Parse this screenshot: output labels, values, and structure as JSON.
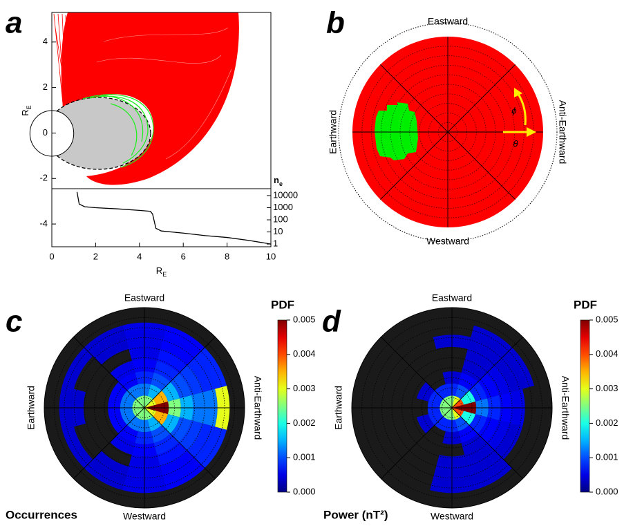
{
  "chart_data": [
    {
      "type": "line",
      "panel_label": "a",
      "xlabel": "R",
      "xlabel_sub": "E",
      "ylabel": "R",
      "ylabel_sub": "E",
      "y2label": "n",
      "y2label_sub": "e",
      "xlim": [
        0,
        10
      ],
      "xticks": [
        0,
        2,
        4,
        6,
        8,
        10
      ],
      "ylim": [
        -5,
        5.3
      ],
      "yticks": [
        -4,
        -2,
        0,
        2,
        4
      ],
      "y2scale": "log",
      "y2lim": [
        0.6,
        37000
      ],
      "y2ticks": [
        1,
        10,
        100,
        1000,
        10000
      ],
      "x": [
        1.15,
        1.25,
        1.5,
        2,
        3,
        4,
        4.5,
        4.6,
        4.75,
        5,
        6,
        7,
        8,
        9,
        10
      ],
      "series": [
        {
          "axis": "y2",
          "color": "#000000",
          "values": [
            20000,
            2000,
            1200,
            1000,
            800,
            600,
            500,
            300,
            20,
            12,
            8,
            5,
            3.5,
            2,
            1
          ]
        }
      ]
    },
    {
      "type": "polar",
      "panel_label": "b",
      "top_label": "Eastward",
      "bottom_label": "Westward",
      "left_label": "Earthward",
      "right_label": "Anti-Earthward",
      "phi_label": "ϕ",
      "theta_label": "θ",
      "color": "#ff0000",
      "region_color": "#00ee00",
      "arrow_color": "#ffee00"
    },
    {
      "type": "polar-heatmap",
      "panel_label": "c",
      "top_label": "Eastward",
      "bottom_label": "Westward",
      "left_label": "Earthward",
      "right_label": "Anti-Earthward",
      "colorbar_label": "PDF",
      "clim": [
        0,
        0.005
      ],
      "cticks": [
        {
          "value": 0,
          "label": "0.000"
        },
        0.001,
        0.002,
        0.003,
        0.004,
        0.005
      ],
      "caption": "Occurrences",
      "values": [
        [
          0.005,
          0.003,
          0.0025,
          0.0025,
          0.0025,
          0.0025,
          0.0025,
          0.0025,
          0.0025,
          0.0025,
          0.0025,
          0.003
        ],
        [
          0.005,
          0.0035,
          0.0015,
          0.0012,
          0.0012,
          0.0012,
          0.0012,
          0.0012,
          0.0012,
          0.0012,
          0.0015,
          0.0035
        ],
        [
          0.0025,
          0.0015,
          0.001,
          0.0008,
          0.0006,
          0.0006,
          0.0006,
          0.0006,
          0.0006,
          0.0008,
          0.001,
          0.0015
        ],
        [
          0.0015,
          0.001,
          0.0008,
          0.0006,
          0.0005,
          null,
          null,
          null,
          0.0005,
          0.0006,
          0.0008,
          0.001
        ],
        [
          0.0012,
          0.0009,
          0.0007,
          0.0005,
          null,
          null,
          null,
          null,
          null,
          0.0005,
          0.0007,
          0.0009
        ],
        [
          0.0012,
          0.0008,
          0.0006,
          0.0005,
          0.0004,
          null,
          0.0004,
          null,
          0.0004,
          0.0005,
          0.0006,
          0.0008
        ],
        [
          0.003,
          0.0008,
          0.0006,
          0.0005,
          0.0004,
          0.0004,
          0.0004,
          0.0004,
          0.0004,
          0.0005,
          0.0006,
          0.0008
        ]
      ]
    },
    {
      "type": "polar-heatmap",
      "panel_label": "d",
      "top_label": "Eastward",
      "bottom_label": "Westward",
      "left_label": "Earthward",
      "right_label": "Anti-Earthward",
      "colorbar_label": "PDF",
      "clim": [
        0,
        0.005
      ],
      "cticks": [
        {
          "value": 0,
          "label": "0.000"
        },
        0.001,
        0.002,
        0.003,
        0.004,
        0.005
      ],
      "caption": "Power (nT²)",
      "values": [
        [
          0.005,
          0.004,
          0.003,
          0.0025,
          0.0025,
          0.0025,
          0.0025,
          0.0025,
          0.0025,
          0.0025,
          0.003,
          0.004
        ],
        [
          0.005,
          0.002,
          0.001,
          0.0008,
          0.0008,
          0.0008,
          0.0008,
          0.0008,
          0.0008,
          0.0008,
          0.001,
          0.002
        ],
        [
          0.0012,
          0.0008,
          0.0006,
          0.0004,
          null,
          0.0004,
          null,
          0.0004,
          null,
          0.0004,
          0.0006,
          0.0008
        ],
        [
          0.0008,
          0.0006,
          0.0004,
          null,
          null,
          null,
          null,
          null,
          null,
          null,
          0.0004,
          0.0006
        ],
        [
          0.0006,
          0.0005,
          0.0004,
          null,
          null,
          null,
          null,
          null,
          null,
          0.0004,
          0.0004,
          0.0005
        ],
        [
          0.0005,
          0.0004,
          0.0004,
          0.0004,
          null,
          null,
          null,
          null,
          null,
          0.0004,
          0.0004,
          0.0004
        ],
        [
          null,
          0.0004,
          0.0004,
          null,
          null,
          null,
          null,
          null,
          null,
          0.0004,
          0.0004,
          null
        ]
      ]
    }
  ]
}
